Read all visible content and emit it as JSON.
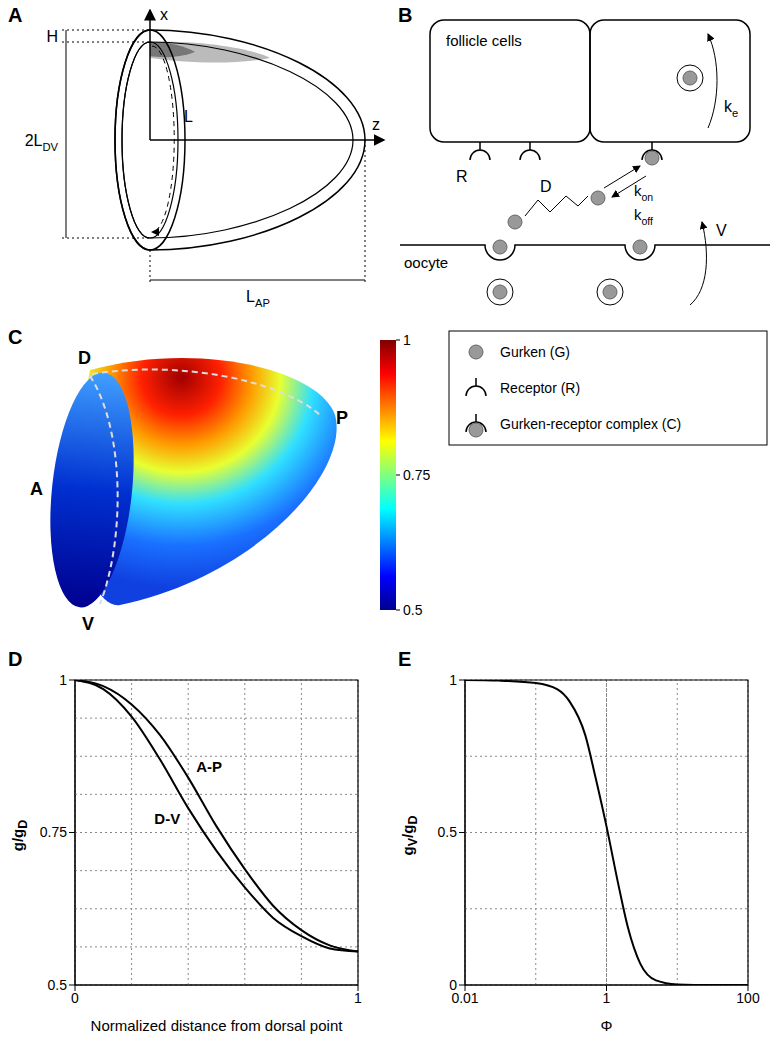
{
  "panel_labels": [
    "A",
    "B",
    "C",
    "D",
    "E"
  ],
  "diagram_a": {
    "axis_x": "x",
    "axis_z": "z",
    "height": "H",
    "width_dv": [
      {
        "t": "2L"
      },
      {
        "t": "DV",
        "sub": true
      }
    ],
    "length": "L",
    "length_ap": [
      {
        "t": "L"
      },
      {
        "t": "AP",
        "sub": true
      }
    ]
  },
  "diagram_b": {
    "cells": "follicle cells",
    "receptor": "R",
    "endocytosis": [
      {
        "t": "k"
      },
      {
        "t": "e",
        "sub": true
      }
    ],
    "diffusion": "D",
    "binding": [
      {
        "t": "k"
      },
      {
        "t": "on",
        "sub": true
      }
    ],
    "unbinding": [
      {
        "t": "k"
      },
      {
        "t": "off",
        "sub": true
      }
    ],
    "secretion": "V",
    "oocyte": "oocyte"
  },
  "key": [
    "Gurken (G)",
    "Receptor (R)",
    "Gurken-receptor complex (C)"
  ],
  "panel_c": {
    "labels": {
      "dorsal": "D",
      "posterior": "P",
      "anterior": "A",
      "ventral": "V"
    },
    "colorbar": {
      "range": [
        0.5,
        1
      ],
      "ticks": [
        0.5,
        0.75,
        1
      ]
    }
  },
  "chart_data": [
    {
      "type": "line",
      "x": [
        0,
        0.1,
        0.2,
        0.3,
        0.4,
        0.5,
        0.6,
        0.7,
        0.8,
        0.9,
        1
      ],
      "series": [
        {
          "name": "A-P",
          "color": "#000000",
          "values": [
            1,
            0.99,
            0.96,
            0.91,
            0.84,
            0.76,
            0.69,
            0.63,
            0.59,
            0.565,
            0.555
          ]
        },
        {
          "name": "D-V",
          "color": "#000000",
          "values": [
            1,
            0.985,
            0.94,
            0.87,
            0.79,
            0.72,
            0.66,
            0.61,
            0.58,
            0.56,
            0.555
          ]
        }
      ],
      "xlabel": "Normalized distance from dorsal point",
      "ylabel": [
        {
          "t": "g/g"
        },
        {
          "t": "D",
          "sub": true
        }
      ],
      "xlim": [
        0,
        1
      ],
      "ylim": [
        0.5,
        1
      ],
      "xticks": [
        0,
        1
      ],
      "yticks": [
        0.5,
        0.75,
        1
      ],
      "grid": true
    },
    {
      "type": "line",
      "x": [
        0.01,
        0.03,
        0.1,
        0.2,
        0.3,
        0.5,
        0.7,
        1,
        1.5,
        2,
        3,
        5,
        10,
        30,
        100
      ],
      "values": [
        1,
        0.998,
        0.99,
        0.97,
        0.93,
        0.82,
        0.68,
        0.52,
        0.32,
        0.19,
        0.07,
        0.015,
        0.002,
        0,
        0
      ],
      "color": "#000000",
      "xlabel": "Φ",
      "ylabel": [
        {
          "t": "g"
        },
        {
          "t": "V",
          "sub": true
        },
        {
          "t": "/g"
        },
        {
          "t": "D",
          "sub": true
        }
      ],
      "log": "x",
      "xlim": [
        0.01,
        100
      ],
      "ylim": [
        0,
        1
      ],
      "xticks": [
        0.01,
        1,
        100
      ],
      "yticks": [
        0,
        0.5,
        1
      ],
      "grid": true
    }
  ]
}
